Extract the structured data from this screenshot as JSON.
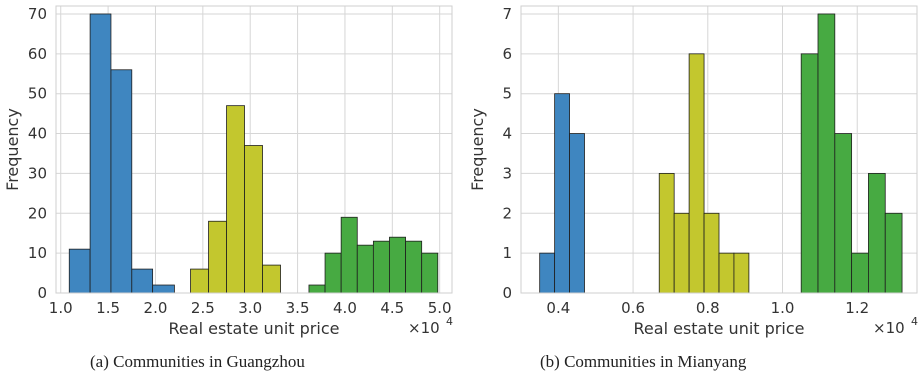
{
  "chart_data": [
    {
      "type": "bar",
      "subtype": "histogram",
      "caption": "(a)  Communities in Guangzhou",
      "xlabel": "Real estate unit price",
      "ylabel": "Frequency",
      "x_multiplier": "×10",
      "x_multiplier_exp": "4",
      "xlim": [
        0.95,
        5.13
      ],
      "ylim": [
        0,
        72
      ],
      "xticks": [
        1.0,
        1.5,
        2.0,
        2.5,
        3.0,
        3.5,
        4.0,
        4.5,
        5.0
      ],
      "xtick_labels": [
        "1.0",
        "1.5",
        "2.0",
        "2.5",
        "3.0",
        "3.5",
        "4.0",
        "4.5",
        "5.0"
      ],
      "yticks": [
        0,
        10,
        20,
        30,
        40,
        50,
        60,
        70
      ],
      "ytick_labels": [
        "0",
        "10",
        "20",
        "30",
        "40",
        "50",
        "60",
        "70"
      ],
      "grid": true,
      "series": [
        {
          "color": "#3f86c0",
          "bins": [
            [
              1.09,
              1.31,
              11
            ],
            [
              1.31,
              1.53,
              70
            ],
            [
              1.53,
              1.75,
              56
            ],
            [
              1.75,
              1.97,
              6
            ],
            [
              1.97,
              2.2,
              2
            ]
          ]
        },
        {
          "color": "#c3c72e",
          "bins": [
            [
              2.37,
              2.56,
              6
            ],
            [
              2.56,
              2.75,
              18
            ],
            [
              2.75,
              2.94,
              47
            ],
            [
              2.94,
              3.13,
              37
            ],
            [
              3.13,
              3.32,
              7
            ]
          ]
        },
        {
          "color": "#47aa42",
          "bins": [
            [
              3.62,
              3.79,
              2
            ],
            [
              3.79,
              3.96,
              10
            ],
            [
              3.96,
              4.13,
              19
            ],
            [
              4.13,
              4.3,
              12
            ],
            [
              4.3,
              4.47,
              13
            ],
            [
              4.47,
              4.64,
              14
            ],
            [
              4.64,
              4.81,
              13
            ],
            [
              4.81,
              4.98,
              10
            ],
            [
              4.98,
              5.15,
              0
            ]
          ]
        }
      ]
    },
    {
      "type": "bar",
      "subtype": "histogram",
      "caption": "(b)  Communities in Mianyang",
      "xlabel": "Real estate unit price",
      "ylabel": "Frequency",
      "x_multiplier": "×10",
      "x_multiplier_exp": "4",
      "xlim": [
        0.3,
        1.36
      ],
      "ylim": [
        0,
        7.2
      ],
      "xticks": [
        0.4,
        0.6,
        0.8,
        1.0,
        1.2
      ],
      "xtick_labels": [
        "0.4",
        "0.6",
        "0.8",
        "1.0",
        "1.2"
      ],
      "yticks": [
        0,
        1,
        2,
        3,
        4,
        5,
        6,
        7
      ],
      "ytick_labels": [
        "0",
        "1",
        "2",
        "3",
        "4",
        "5",
        "6",
        "7"
      ],
      "grid": true,
      "series": [
        {
          "color": "#3f86c0",
          "bins": [
            [
              0.35,
              0.39,
              1
            ],
            [
              0.39,
              0.43,
              5
            ],
            [
              0.43,
              0.47,
              4
            ]
          ]
        },
        {
          "color": "#c3c72e",
          "bins": [
            [
              0.67,
              0.71,
              3
            ],
            [
              0.71,
              0.75,
              2
            ],
            [
              0.75,
              0.79,
              6
            ],
            [
              0.79,
              0.83,
              2
            ],
            [
              0.83,
              0.87,
              1
            ],
            [
              0.87,
              0.91,
              1
            ]
          ]
        },
        {
          "color": "#47aa42",
          "bins": [
            [
              1.05,
              1.095,
              6
            ],
            [
              1.095,
              1.14,
              7
            ],
            [
              1.14,
              1.185,
              4
            ],
            [
              1.185,
              1.23,
              1
            ],
            [
              1.23,
              1.275,
              3
            ],
            [
              1.275,
              1.32,
              2
            ]
          ]
        }
      ]
    }
  ]
}
